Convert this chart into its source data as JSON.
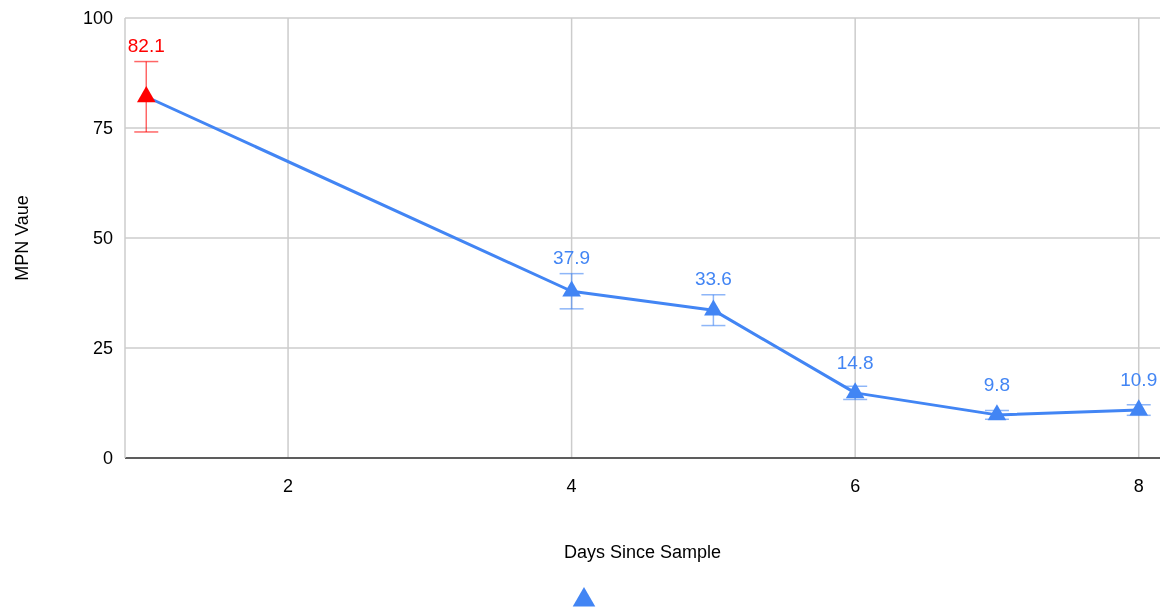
{
  "chart_data": {
    "type": "line",
    "xlabel": "Days Since Sample",
    "ylabel": "MPN Vaue",
    "x": [
      1,
      4,
      5,
      6,
      7,
      8
    ],
    "series": [
      {
        "color": "#4285f4",
        "colors": [
          "#ff0000",
          "#4285f4",
          "#4285f4",
          "#4285f4",
          "#4285f4",
          "#4285f4"
        ],
        "values": [
          82.1,
          37.9,
          33.6,
          14.8,
          9.8,
          10.9
        ],
        "errors": [
          8,
          4,
          3.5,
          1.5,
          1,
          1.2
        ]
      }
    ],
    "xlim": [
      0.85,
      8.15
    ],
    "xticks": [
      2,
      4,
      6,
      8
    ],
    "ylim": [
      0,
      100
    ],
    "yticks": [
      0,
      25,
      50,
      75,
      100
    ],
    "grid": true,
    "marker": "triangle",
    "line_style": "solid",
    "data_labels": true
  }
}
